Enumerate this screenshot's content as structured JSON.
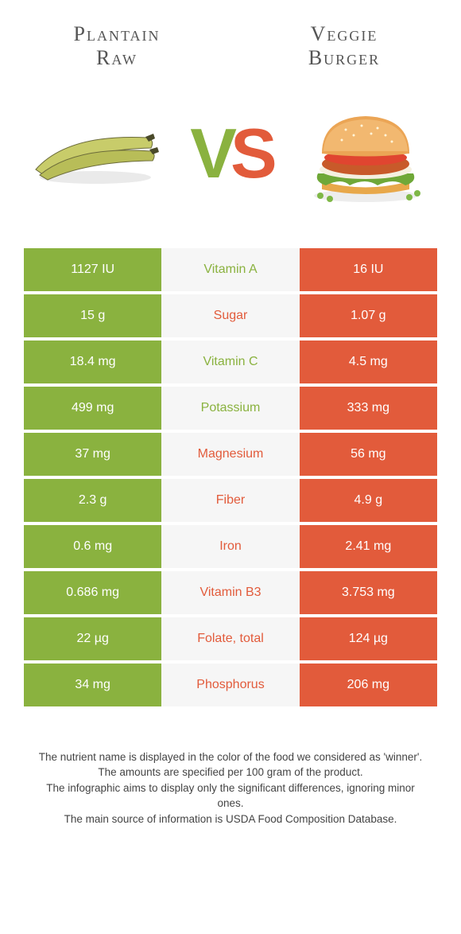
{
  "left_food": {
    "title_line1": "Plantain",
    "title_line2": "Raw"
  },
  "right_food": {
    "title_line1": "Veggie",
    "title_line2": "Burger"
  },
  "colors": {
    "left": "#8ab23f",
    "right": "#e25b3b",
    "mid_bg": "#f6f6f6"
  },
  "rows": [
    {
      "nutrient": "Vitamin A",
      "left": "1127 IU",
      "right": "16 IU",
      "winner": "left"
    },
    {
      "nutrient": "Sugar",
      "left": "15 g",
      "right": "1.07 g",
      "winner": "right"
    },
    {
      "nutrient": "Vitamin C",
      "left": "18.4 mg",
      "right": "4.5 mg",
      "winner": "left"
    },
    {
      "nutrient": "Potassium",
      "left": "499 mg",
      "right": "333 mg",
      "winner": "left"
    },
    {
      "nutrient": "Magnesium",
      "left": "37 mg",
      "right": "56 mg",
      "winner": "right"
    },
    {
      "nutrient": "Fiber",
      "left": "2.3 g",
      "right": "4.9 g",
      "winner": "right"
    },
    {
      "nutrient": "Iron",
      "left": "0.6 mg",
      "right": "2.41 mg",
      "winner": "right"
    },
    {
      "nutrient": "Vitamin B3",
      "left": "0.686 mg",
      "right": "3.753 mg",
      "winner": "right"
    },
    {
      "nutrient": "Folate, total",
      "left": "22 µg",
      "right": "124 µg",
      "winner": "right"
    },
    {
      "nutrient": "Phosphorus",
      "left": "34 mg",
      "right": "206 mg",
      "winner": "right"
    }
  ],
  "footer": [
    "The nutrient name is displayed in the color of the food we considered as 'winner'.",
    "The amounts are specified per 100 gram of the product.",
    "The infographic aims to display only the significant differences, ignoring minor ones.",
    "The main source of information is USDA Food Composition Database."
  ]
}
